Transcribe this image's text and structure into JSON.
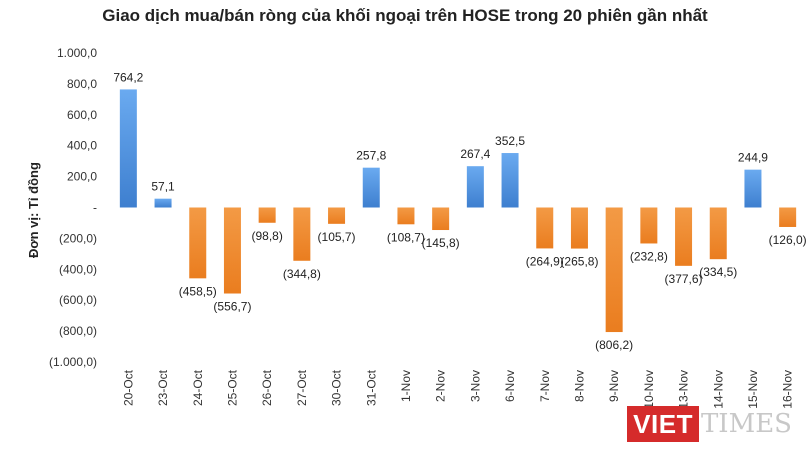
{
  "chart_data": {
    "type": "bar",
    "title": "Giao dịch mua/bán ròng của khối ngoại trên HOSE trong 20 phiên gần nhất",
    "ylabel": "Đơn vị: Tỉ đồng",
    "xlabel": "",
    "ylim": [
      -1000,
      1000
    ],
    "yticks": [
      1000,
      800,
      600,
      400,
      200,
      0,
      -200,
      -400,
      -600,
      -800,
      -1000
    ],
    "ytick_labels": [
      "1.000,0",
      "800,0",
      "600,0",
      "400,0",
      "200,0",
      "-",
      "(200,0)",
      "(400,0)",
      "(600,0)",
      "(800,0)",
      "(1.000,0)"
    ],
    "categories": [
      "20-Oct",
      "23-Oct",
      "24-Oct",
      "25-Oct",
      "26-Oct",
      "27-Oct",
      "30-Oct",
      "31-Oct",
      "1-Nov",
      "2-Nov",
      "3-Nov",
      "6-Nov",
      "7-Nov",
      "8-Nov",
      "9-Nov",
      "10-Nov",
      "13-Nov",
      "14-Nov",
      "15-Nov",
      "16-Nov"
    ],
    "values": [
      764.2,
      57.1,
      -458.5,
      -556.7,
      -98.8,
      -344.8,
      -105.7,
      257.8,
      -108.7,
      -145.8,
      267.4,
      352.5,
      -264.9,
      -265.8,
      -806.2,
      -232.8,
      -377.6,
      -334.5,
      244.9,
      -126.0
    ],
    "value_labels": [
      "764,2",
      "57,1",
      "(458,5)",
      "(556,7)",
      "(98,8)",
      "(344,8)",
      "(105,7)",
      "257,8",
      "(108,7)",
      "(145,8)",
      "267,4",
      "352,5",
      "(264,9)",
      "(265,8)",
      "(806,2)",
      "(232,8)",
      "(377,6)",
      "(334,5)",
      "244,9",
      "(126,0)"
    ],
    "colors": {
      "positive": "#4a8fdc",
      "negative": "#f08a2b"
    },
    "grid": false,
    "legend": "none"
  },
  "watermark": {
    "left": "VIET",
    "right": "TIMES"
  }
}
